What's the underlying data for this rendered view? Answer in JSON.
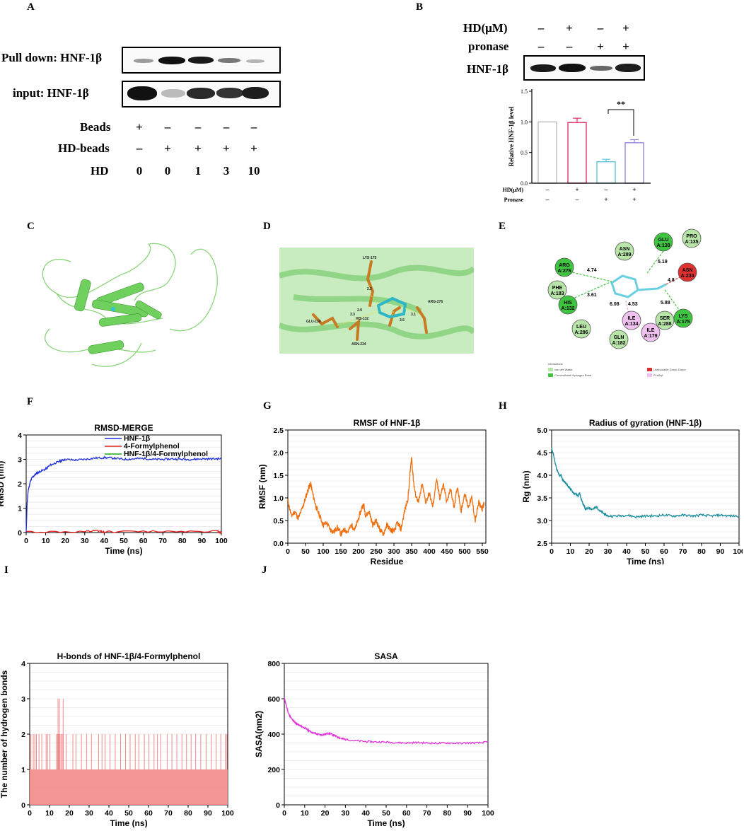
{
  "panels": {
    "A": {
      "letter": "A",
      "pulldown_label": "Pull down: HNF-1β",
      "input_label": "input: HNF-1β",
      "rows": [
        {
          "label": "Beads",
          "values": [
            "+",
            "–",
            "–",
            "–",
            "–"
          ]
        },
        {
          "label": "HD-beads",
          "values": [
            "–",
            "+",
            "+",
            "+",
            "+"
          ]
        },
        {
          "label": "HD",
          "values": [
            "0",
            "0",
            "1",
            "3",
            "10"
          ]
        }
      ]
    },
    "B": {
      "letter": "B",
      "rows": [
        {
          "label": "HD(μM)",
          "values": [
            "–",
            "+",
            "–",
            "+"
          ]
        },
        {
          "label": "pronase",
          "values": [
            "–",
            "–",
            "+",
            "+"
          ]
        }
      ],
      "blot_label": "HNF-1β",
      "bar_rows": [
        {
          "label": "HD(μM)",
          "values": [
            "–",
            "+",
            "–",
            "+"
          ]
        },
        {
          "label": "Pronase",
          "values": [
            "–",
            "–",
            "+",
            "+"
          ]
        }
      ],
      "significance": "**"
    },
    "C": {
      "letter": "C"
    },
    "D": {
      "letter": "D",
      "residues": [
        "LYS-175",
        "GLU-138",
        "HIS-132",
        "ASN-234",
        "ARG-276"
      ],
      "distances": [
        "2.2",
        "2.9",
        "3.3",
        "3.5",
        "3.1"
      ]
    },
    "E": {
      "letter": "E",
      "residues": [
        {
          "name": "ASN",
          "id": "A:289",
          "color": "#b8e6a8"
        },
        {
          "name": "GLU",
          "id": "A:138",
          "color": "#3fc43f"
        },
        {
          "name": "PRO",
          "id": "A:135",
          "color": "#b8e6a8"
        },
        {
          "name": "ARG",
          "id": "A:276",
          "color": "#3fc43f"
        },
        {
          "name": "ASN",
          "id": "A:234",
          "color": "#e03030"
        },
        {
          "name": "PHE",
          "id": "A:183",
          "color": "#b8e6a8"
        },
        {
          "name": "HIS",
          "id": "A:132",
          "color": "#3fc43f"
        },
        {
          "name": "ILE",
          "id": "A:134",
          "color": "#f0c0ee"
        },
        {
          "name": "SER",
          "id": "A:288",
          "color": "#b8e6a8"
        },
        {
          "name": "LYS",
          "id": "A:175",
          "color": "#3fc43f"
        },
        {
          "name": "LEU",
          "id": "A:286",
          "color": "#b8e6a8"
        },
        {
          "name": "ILE",
          "id": "A:179",
          "color": "#f0c0ee"
        },
        {
          "name": "GLN",
          "id": "A:182",
          "color": "#b8e6a8"
        }
      ],
      "distances": [
        "4.74",
        "3.61",
        "6.08",
        "4.53",
        "5.19",
        "4.8",
        "5.88"
      ],
      "legend_title": "Interactions",
      "legend": [
        {
          "label": "van der Waals",
          "color": "#b8e6a8"
        },
        {
          "label": "Conventional Hydrogen Bond",
          "color": "#3fc43f"
        },
        {
          "label": "Unfavorable Donor-Donor",
          "color": "#e03030"
        },
        {
          "label": "Pi-Alkyl",
          "color": "#f0c0ee"
        }
      ]
    },
    "F": {
      "letter": "F"
    },
    "G": {
      "letter": "G"
    },
    "H": {
      "letter": "H"
    },
    "I": {
      "letter": "I"
    },
    "J": {
      "letter": "J"
    }
  },
  "chart_data": [
    {
      "id": "B-bar",
      "type": "bar",
      "title": "",
      "ylabel": "Relative HNF-1β level",
      "xlabel": "",
      "categories": [
        "–/–",
        "+/–",
        "–/+",
        "+/+"
      ],
      "values": [
        1.0,
        0.99,
        0.35,
        0.66
      ],
      "errors": [
        0.0,
        0.07,
        0.04,
        0.05
      ],
      "colors": [
        "#bdbdbd",
        "#e0306a",
        "#5fc8d8",
        "#9a86d6"
      ],
      "ylim": [
        0,
        1.5
      ],
      "yticks": [
        "0.0",
        "0.5",
        "1.0",
        "1.5"
      ]
    },
    {
      "id": "F",
      "type": "line",
      "title": "RMSD-MERGE",
      "xlabel": "Time (ns)",
      "ylabel": "RMSD (nm)",
      "xlim": [
        0,
        100
      ],
      "ylim": [
        0,
        4
      ],
      "xticks": [
        "0",
        "10",
        "20",
        "30",
        "40",
        "50",
        "60",
        "70",
        "80",
        "90",
        "100"
      ],
      "yticks": [
        "0",
        "1",
        "2",
        "3",
        "4"
      ],
      "legend": [
        "HNF-1β",
        "4-Formylphenol",
        "HNF-1β/4-Formylphenol"
      ],
      "series": [
        {
          "name": "HNF-1β",
          "color": "#1f2fd6",
          "points": [
            [
              0,
              0
            ],
            [
              0.5,
              1.2
            ],
            [
              1,
              1.7
            ],
            [
              2,
              2.05
            ],
            [
              3,
              2.25
            ],
            [
              5,
              2.4
            ],
            [
              7,
              2.5
            ],
            [
              10,
              2.6
            ],
            [
              12,
              2.75
            ],
            [
              15,
              2.85
            ],
            [
              18,
              2.95
            ],
            [
              20,
              3.0
            ],
            [
              25,
              2.97
            ],
            [
              30,
              3.0
            ],
            [
              35,
              3.05
            ],
            [
              40,
              3.07
            ],
            [
              45,
              3.05
            ],
            [
              50,
              3.0
            ],
            [
              55,
              3.02
            ],
            [
              60,
              3.04
            ],
            [
              65,
              3.0
            ],
            [
              70,
              3.0
            ],
            [
              75,
              3.02
            ],
            [
              80,
              3.0
            ],
            [
              85,
              3.0
            ],
            [
              90,
              3.02
            ],
            [
              95,
              3.02
            ],
            [
              100,
              3.03
            ]
          ]
        },
        {
          "name": "4-Formylphenol",
          "color": "#e02020",
          "points": [
            [
              0,
              0.03
            ],
            [
              30,
              0.03
            ],
            [
              36,
              0.07
            ],
            [
              40,
              0.03
            ],
            [
              70,
              0.05
            ],
            [
              98,
              0.06
            ],
            [
              99,
              0.02
            ],
            [
              100,
              0.02
            ]
          ]
        },
        {
          "name": "HNF-1β/4-Formylphenol",
          "color": "#22aa22",
          "points": []
        }
      ]
    },
    {
      "id": "G",
      "type": "line",
      "title": "RMSF of HNF-1β",
      "xlabel": "Residue",
      "ylabel": "RMSF (nm)",
      "xlim": [
        0,
        560
      ],
      "ylim": [
        0,
        2.5
      ],
      "xticks": [
        "0",
        "50",
        "100",
        "150",
        "200",
        "250",
        "300",
        "350",
        "400",
        "450",
        "500",
        "550"
      ],
      "yticks": [
        "0.0",
        "0.5",
        "1.0",
        "1.5",
        "2.0",
        "2.5"
      ],
      "series": [
        {
          "name": "RMSF",
          "color": "#f07010",
          "points": [
            [
              0,
              0.95
            ],
            [
              10,
              0.6
            ],
            [
              20,
              0.7
            ],
            [
              30,
              0.55
            ],
            [
              40,
              0.75
            ],
            [
              50,
              1.0
            ],
            [
              60,
              1.25
            ],
            [
              65,
              1.3
            ],
            [
              70,
              1.1
            ],
            [
              80,
              0.8
            ],
            [
              90,
              0.6
            ],
            [
              100,
              0.4
            ],
            [
              110,
              0.45
            ],
            [
              120,
              0.3
            ],
            [
              130,
              0.25
            ],
            [
              140,
              0.35
            ],
            [
              150,
              0.2
            ],
            [
              160,
              0.3
            ],
            [
              170,
              0.25
            ],
            [
              180,
              0.4
            ],
            [
              190,
              0.3
            ],
            [
              200,
              0.55
            ],
            [
              210,
              0.8
            ],
            [
              215,
              0.85
            ],
            [
              220,
              0.6
            ],
            [
              230,
              0.7
            ],
            [
              240,
              0.4
            ],
            [
              250,
              0.5
            ],
            [
              260,
              0.3
            ],
            [
              270,
              0.2
            ],
            [
              280,
              0.4
            ],
            [
              290,
              0.3
            ],
            [
              300,
              0.25
            ],
            [
              310,
              0.45
            ],
            [
              320,
              0.3
            ],
            [
              330,
              0.7
            ],
            [
              340,
              1.0
            ],
            [
              345,
              1.5
            ],
            [
              350,
              1.9
            ],
            [
              355,
              1.4
            ],
            [
              360,
              1.1
            ],
            [
              370,
              0.9
            ],
            [
              380,
              1.3
            ],
            [
              390,
              0.9
            ],
            [
              400,
              1.1
            ],
            [
              410,
              0.8
            ],
            [
              420,
              1.4
            ],
            [
              430,
              1.0
            ],
            [
              440,
              1.3
            ],
            [
              450,
              0.9
            ],
            [
              460,
              1.2
            ],
            [
              470,
              0.8
            ],
            [
              480,
              1.25
            ],
            [
              490,
              0.7
            ],
            [
              500,
              1.1
            ],
            [
              510,
              0.8
            ],
            [
              520,
              1.0
            ],
            [
              530,
              0.5
            ],
            [
              540,
              0.9
            ],
            [
              550,
              0.75
            ],
            [
              555,
              0.9
            ]
          ]
        }
      ]
    },
    {
      "id": "H",
      "type": "line",
      "title": "Radius of gyration (HNF-1β)",
      "xlabel": "Time (ns)",
      "ylabel": "Rg (nm)",
      "xlim": [
        0,
        100
      ],
      "ylim": [
        2.5,
        5.0
      ],
      "xticks": [
        "0",
        "10",
        "20",
        "30",
        "40",
        "50",
        "60",
        "70",
        "80",
        "90",
        "100"
      ],
      "yticks": [
        "2.5",
        "3.0",
        "3.5",
        "4.0",
        "4.5",
        "5.0"
      ],
      "series": [
        {
          "name": "Rg",
          "color": "#1a8ea0",
          "points": [
            [
              0,
              4.6
            ],
            [
              1,
              4.45
            ],
            [
              2,
              4.25
            ],
            [
              3,
              4.1
            ],
            [
              4,
              4.0
            ],
            [
              5,
              4.0
            ],
            [
              6,
              3.9
            ],
            [
              7,
              3.85
            ],
            [
              8,
              3.8
            ],
            [
              9,
              3.75
            ],
            [
              10,
              3.7
            ],
            [
              12,
              3.6
            ],
            [
              14,
              3.55
            ],
            [
              15,
              3.6
            ],
            [
              16,
              3.45
            ],
            [
              17,
              3.35
            ],
            [
              18,
              3.25
            ],
            [
              20,
              3.28
            ],
            [
              22,
              3.25
            ],
            [
              24,
              3.3
            ],
            [
              26,
              3.2
            ],
            [
              28,
              3.15
            ],
            [
              30,
              3.1
            ],
            [
              35,
              3.1
            ],
            [
              40,
              3.12
            ],
            [
              45,
              3.08
            ],
            [
              50,
              3.1
            ],
            [
              55,
              3.1
            ],
            [
              60,
              3.12
            ],
            [
              65,
              3.1
            ],
            [
              70,
              3.12
            ],
            [
              75,
              3.1
            ],
            [
              80,
              3.12
            ],
            [
              85,
              3.1
            ],
            [
              90,
              3.12
            ],
            [
              95,
              3.1
            ],
            [
              100,
              3.1
            ]
          ]
        }
      ]
    },
    {
      "id": "I",
      "type": "bar",
      "title": "H-bonds of HNF-1β/4-Formylphenol",
      "xlabel": "Time (ns)",
      "ylabel": "The number of hydrogen bonds",
      "xlim": [
        0,
        100
      ],
      "ylim": [
        0,
        4
      ],
      "xticks": [
        "0",
        "10",
        "20",
        "30",
        "40",
        "50",
        "60",
        "70",
        "80",
        "90",
        "100"
      ],
      "yticks": [
        "0",
        "1",
        "2",
        "3",
        "4"
      ],
      "base_value": 1,
      "spikes2_x": [
        0.6,
        1.8,
        2.6,
        3.4,
        4.7,
        6.1,
        8.3,
        9.0,
        10.2,
        13.5,
        14.1,
        14.6,
        15.2,
        15.8,
        16.4,
        17.0,
        18.5,
        21.8,
        23.4,
        26.1,
        28.7,
        31.2,
        34.8,
        36.5,
        38.1,
        40.6,
        43.2,
        45.9,
        48.4,
        50.7,
        53.3,
        55.1,
        57.9,
        60.2,
        62.8,
        64.5,
        66.1,
        69.4,
        71.8,
        74.3,
        76.9,
        79.2,
        81.5,
        83.8,
        86.4,
        89.1,
        91.7,
        94.2,
        96.5,
        98.8,
        99.6
      ],
      "spikes3_x": [
        14.3,
        15.0,
        16.9
      ]
    },
    {
      "id": "J",
      "type": "line",
      "title": "SASA",
      "xlabel": "Time (ns)",
      "ylabel": "SASA(nm2)",
      "xlim": [
        0,
        100
      ],
      "ylim": [
        0,
        800
      ],
      "xticks": [
        "0",
        "10",
        "20",
        "30",
        "40",
        "50",
        "60",
        "70",
        "80",
        "90",
        "100"
      ],
      "yticks": [
        "0",
        "200",
        "400",
        "600",
        "800"
      ],
      "series": [
        {
          "name": "SASA",
          "color": "#e035d8",
          "points": [
            [
              0,
              605
            ],
            [
              1,
              560
            ],
            [
              2,
              520
            ],
            [
              3,
              495
            ],
            [
              4,
              480
            ],
            [
              5,
              468
            ],
            [
              6,
              460
            ],
            [
              7,
              452
            ],
            [
              8,
              446
            ],
            [
              10,
              435
            ],
            [
              12,
              420
            ],
            [
              14,
              408
            ],
            [
              16,
              400
            ],
            [
              18,
              395
            ],
            [
              20,
              400
            ],
            [
              22,
              405
            ],
            [
              24,
              395
            ],
            [
              26,
              385
            ],
            [
              28,
              375
            ],
            [
              30,
              370
            ],
            [
              35,
              362
            ],
            [
              40,
              358
            ],
            [
              45,
              356
            ],
            [
              50,
              355
            ],
            [
              55,
              352
            ],
            [
              60,
              350
            ],
            [
              65,
              352
            ],
            [
              70,
              350
            ],
            [
              75,
              348
            ],
            [
              80,
              350
            ],
            [
              85,
              348
            ],
            [
              90,
              350
            ],
            [
              95,
              350
            ],
            [
              100,
              355
            ]
          ]
        }
      ]
    }
  ]
}
